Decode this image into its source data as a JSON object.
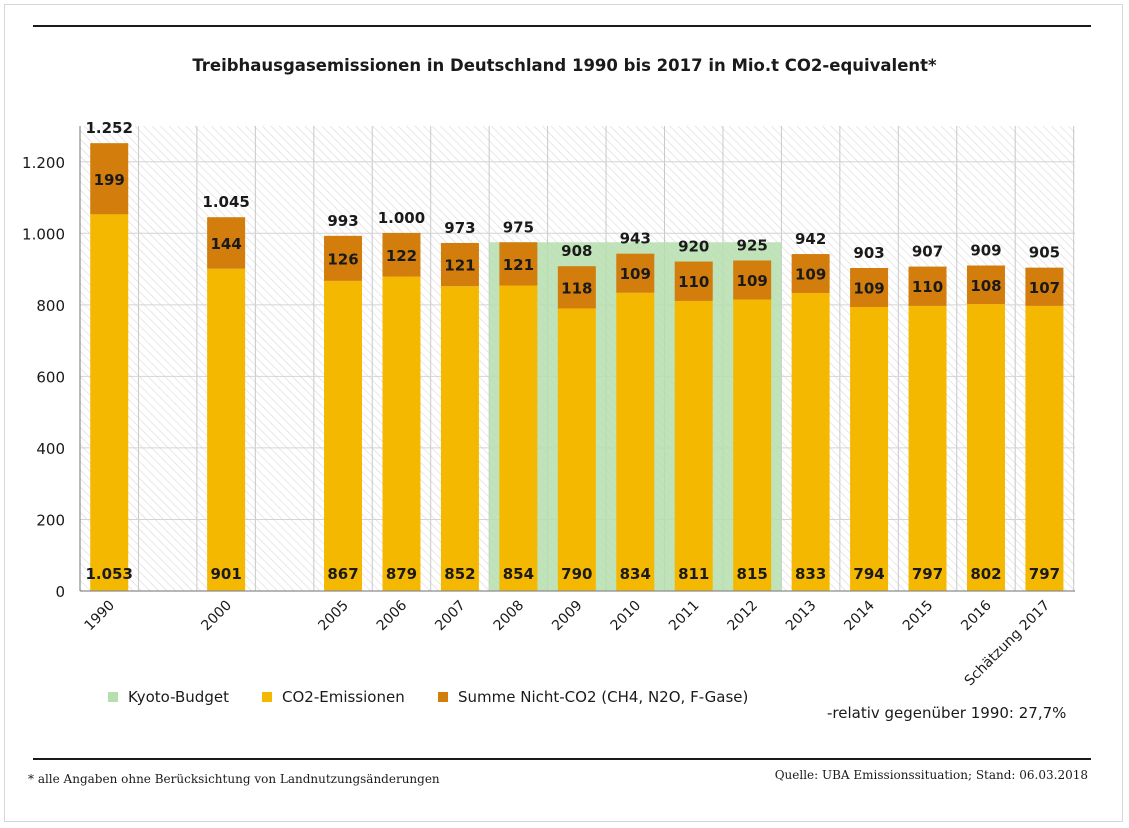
{
  "chart_data": {
    "type": "bar",
    "title": "Treibhausgasemissionen in Deutschland 1990 bis 2017 in Mio.t CO2-equivalent*",
    "categories": [
      "1990",
      "2000",
      "2005",
      "2006",
      "2007",
      "2008",
      "2009",
      "2010",
      "2011",
      "2012",
      "2013",
      "2014",
      "2015",
      "2016",
      "Schätzung 2017"
    ],
    "series": [
      {
        "name": "CO2-Emissionen",
        "values": [
          1053,
          901,
          867,
          879,
          852,
          854,
          790,
          834,
          811,
          815,
          833,
          794,
          797,
          802,
          797
        ],
        "labels": [
          "1.053",
          "901",
          "867",
          "879",
          "852",
          "854",
          "790",
          "834",
          "811",
          "815",
          "833",
          "794",
          "797",
          "802",
          "797"
        ],
        "color": "#f5b800"
      },
      {
        "name": "Summe Nicht-CO2 (CH4, N2O, F-Gase)",
        "values": [
          199,
          144,
          126,
          122,
          121,
          121,
          118,
          109,
          110,
          109,
          109,
          109,
          110,
          108,
          107
        ],
        "labels": [
          "199",
          "144",
          "126",
          "122",
          "121",
          "121",
          "118",
          "109",
          "110",
          "109",
          "109",
          "109",
          "110",
          "108",
          "107"
        ],
        "color": "#d27d0c"
      }
    ],
    "totals": [
      1252,
      1045,
      993,
      1000,
      973,
      975,
      908,
      943,
      920,
      925,
      942,
      903,
      907,
      909,
      905
    ],
    "total_labels": [
      "1.252",
      "1.045",
      "993",
      "1.000",
      "973",
      "975",
      "908",
      "943",
      "920",
      "925",
      "942",
      "903",
      "907",
      "909",
      "905"
    ],
    "kyoto_budget": {
      "name": "Kyoto-Budget",
      "from": "2008",
      "to": "2012",
      "value": 975,
      "color": "#b6deae"
    },
    "y_ticks": [
      0,
      200,
      400,
      600,
      800,
      1000,
      1200
    ],
    "y_tick_labels": [
      "0",
      "200",
      "400",
      "600",
      "800",
      "1.000",
      "1.200"
    ],
    "ylim": [
      0,
      1300
    ],
    "grid": true,
    "legend_position": "bottom",
    "xlabel": "",
    "ylabel": ""
  },
  "legend": {
    "kyoto": "Kyoto-Budget",
    "co2": "CO2-Emissionen",
    "nonco2": "Summe Nicht-CO2 (CH4, N2O, F-Gase)"
  },
  "colors": {
    "co2": "#f5b800",
    "nonco2": "#d27d0c",
    "kyoto": "#b6deae"
  },
  "relative_note": "-relativ gegenüber 1990: 27,7%",
  "footnote": "* alle Angaben ohne Berücksichtung von Landnutzungsänderungen",
  "source": "Quelle: UBA Emissionssituation; Stand: 06.03.2018"
}
